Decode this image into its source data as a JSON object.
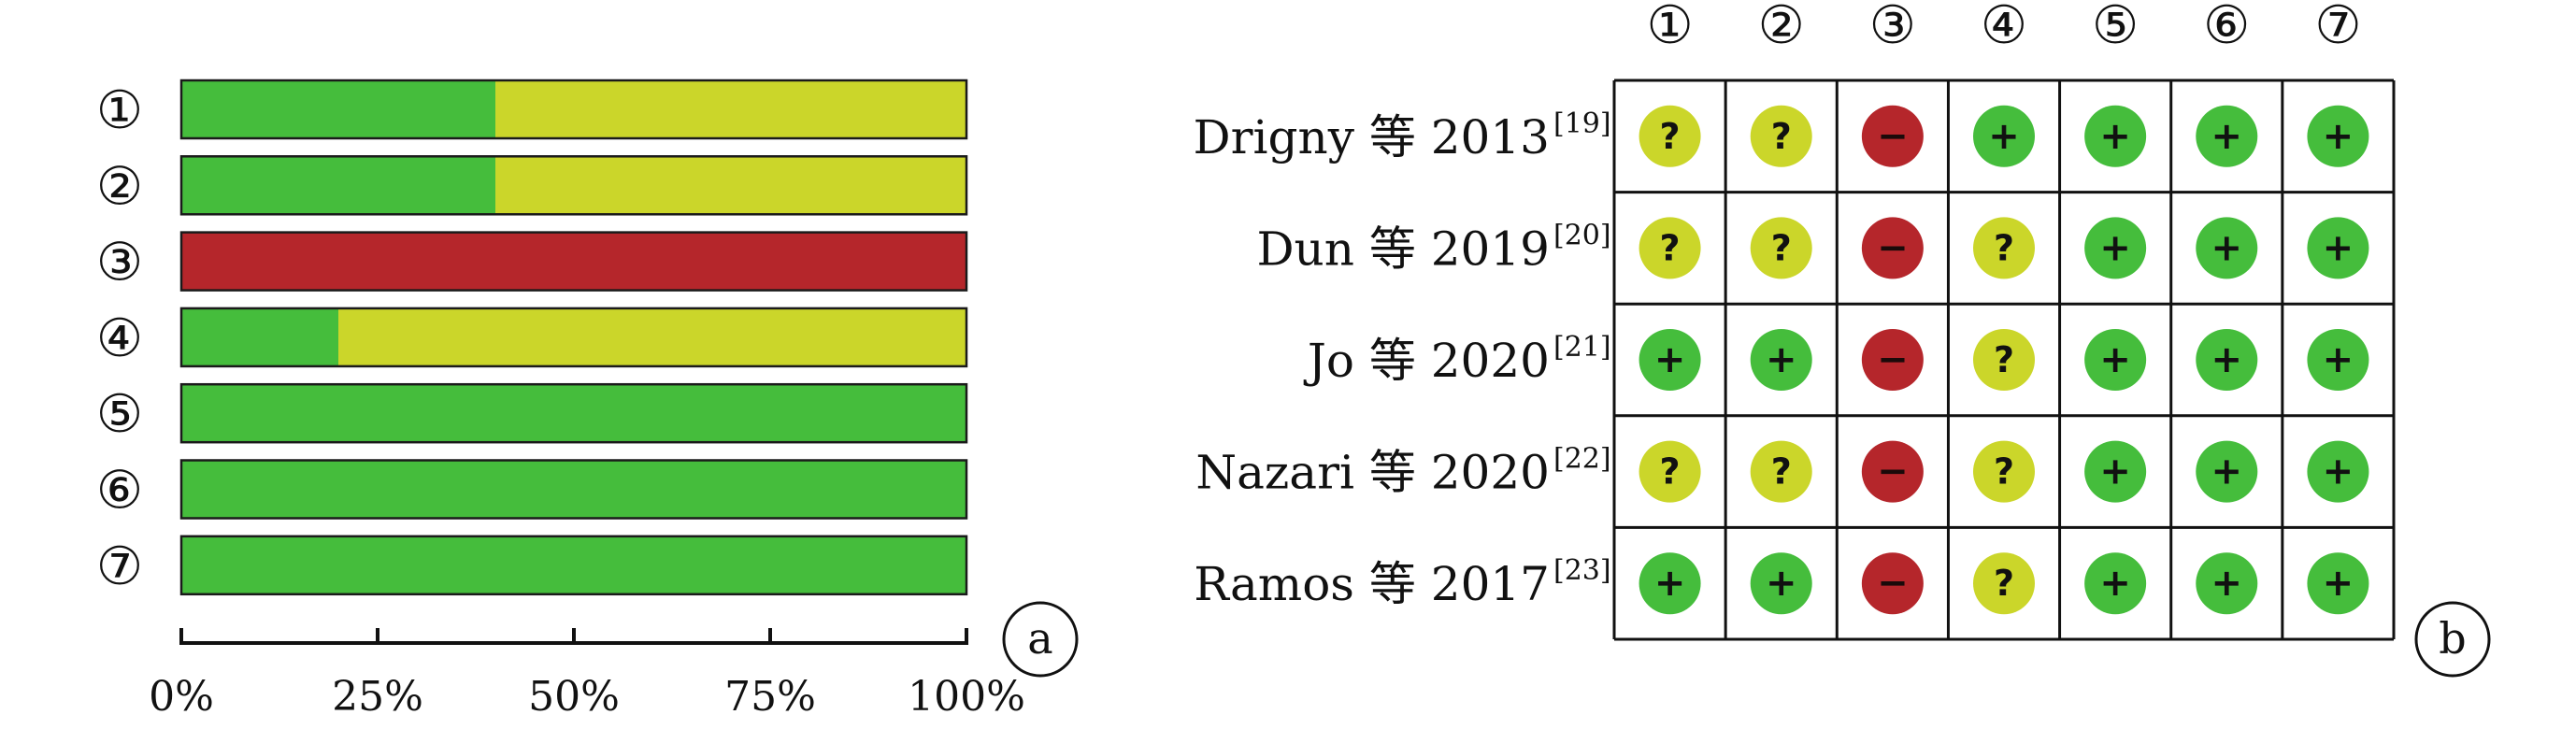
{
  "colors": {
    "low": "#45bd3c",
    "unclear": "#cbd62a",
    "high": "#b5262b",
    "border": "#1a1a1a"
  },
  "chart_data": [
    {
      "type": "bar",
      "orientation": "horizontal-stacked-percent",
      "categories": [
        "①",
        "②",
        "③",
        "④",
        "⑤",
        "⑥",
        "⑦"
      ],
      "series": [
        {
          "key": "low",
          "values": [
            40,
            40,
            0,
            20,
            100,
            100,
            100
          ]
        },
        {
          "key": "unclear",
          "values": [
            60,
            60,
            0,
            80,
            0,
            0,
            0
          ]
        },
        {
          "key": "high",
          "values": [
            0,
            0,
            100,
            0,
            0,
            0,
            0
          ]
        }
      ],
      "xlim": [
        0,
        100
      ],
      "xticks": [
        "0%",
        "25%",
        "50%",
        "75%",
        "100%"
      ],
      "panel_label": "a",
      "grid": false
    },
    {
      "type": "table",
      "columns": [
        "①",
        "②",
        "③",
        "④",
        "⑤",
        "⑥",
        "⑦"
      ],
      "rows": [
        {
          "name": "Drigny 等 2013",
          "ref": "[19]",
          "values": [
            "?",
            "?",
            "−",
            "+",
            "+",
            "+",
            "+"
          ]
        },
        {
          "name": "Dun 等 2019",
          "ref": "[20]",
          "values": [
            "?",
            "?",
            "−",
            "?",
            "+",
            "+",
            "+"
          ]
        },
        {
          "name": "Jo 等 2020",
          "ref": "[21]",
          "values": [
            "+",
            "+",
            "−",
            "?",
            "+",
            "+",
            "+"
          ]
        },
        {
          "name": "Nazari 等 2020",
          "ref": "[22]",
          "values": [
            "?",
            "?",
            "−",
            "?",
            "+",
            "+",
            "+"
          ]
        },
        {
          "name": "Ramos 等 2017",
          "ref": "[23]",
          "values": [
            "+",
            "+",
            "−",
            "?",
            "+",
            "+",
            "+"
          ]
        }
      ],
      "panel_label": "b"
    }
  ]
}
